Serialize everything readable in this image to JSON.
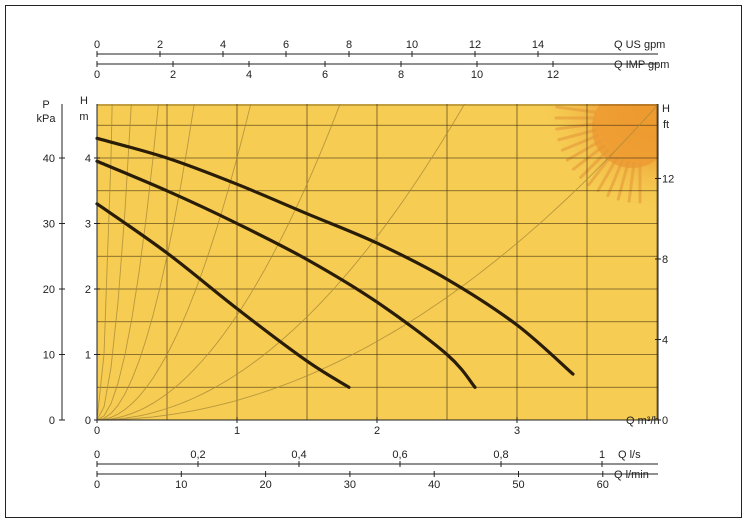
{
  "chart_data": {
    "type": "line",
    "background_color": "#f6cc52",
    "grid_color": "#3a2a10",
    "curve_color": "#2a1d08",
    "left_axis_outer": {
      "title": [
        "P",
        "kPa"
      ],
      "ticks": [
        "0",
        "10",
        "20",
        "30",
        "40"
      ],
      "range": [
        0,
        48
      ]
    },
    "left_axis_inner": {
      "title": [
        "H",
        "m"
      ],
      "ticks": [
        "0",
        "1",
        "2",
        "3",
        "4"
      ],
      "range": [
        0,
        4.8
      ]
    },
    "right_axis": {
      "title": [
        "H",
        "ft"
      ],
      "ticks": [
        "0",
        "4",
        "8",
        "12"
      ],
      "range": [
        0,
        15.7
      ]
    },
    "x_axis_m3h": {
      "title": "Q m³/h",
      "ticks": [
        "0",
        "1",
        "2",
        "3"
      ],
      "range": [
        0,
        4
      ]
    },
    "x_axis_ls": {
      "title": "Q l/s",
      "ticks": [
        "0",
        "0,2",
        "0,4",
        "0,6",
        "0,8",
        "1"
      ]
    },
    "x_axis_lmin": {
      "title": "Q l/min",
      "ticks": [
        "0",
        "10",
        "20",
        "30",
        "40",
        "50",
        "60"
      ]
    },
    "x_axis_usgpm": {
      "title": "Q US gpm",
      "ticks": [
        "0",
        "2",
        "4",
        "6",
        "8",
        "10",
        "12",
        "14"
      ]
    },
    "x_axis_impgpm": {
      "title": "Q IMP gpm",
      "ticks": [
        "0",
        "2",
        "4",
        "6",
        "8",
        "10",
        "12"
      ]
    },
    "series": [
      {
        "x": [
          0,
          0.5,
          1.0,
          1.5,
          1.8
        ],
        "y": [
          3.3,
          2.55,
          1.7,
          0.9,
          0.5
        ]
      },
      {
        "x": [
          0,
          0.5,
          1.0,
          1.5,
          2.0,
          2.5,
          2.7
        ],
        "y": [
          3.95,
          3.5,
          3.0,
          2.45,
          1.8,
          1.0,
          0.5
        ]
      },
      {
        "x": [
          0,
          0.5,
          1.0,
          1.5,
          2.0,
          2.5,
          3.0,
          3.4
        ],
        "y": [
          4.3,
          4.0,
          3.6,
          3.15,
          2.7,
          2.15,
          1.45,
          0.7
        ]
      }
    ],
    "system_curves_k": [
      400,
      80,
      25,
      10,
      4,
      1.6,
      0.7,
      0.3
    ]
  }
}
